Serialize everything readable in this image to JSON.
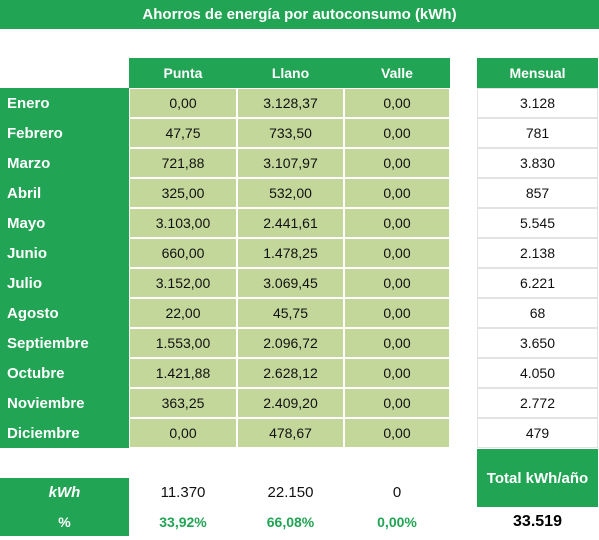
{
  "title": "Ahorros de energía por autoconsumo (kWh)",
  "headers": {
    "punta": "Punta",
    "llano": "Llano",
    "valle": "Valle",
    "mensual": "Mensual"
  },
  "rows": [
    {
      "month": "Enero",
      "punta": "0,00",
      "llano": "3.128,37",
      "valle": "0,00",
      "mensual": "3.128"
    },
    {
      "month": "Febrero",
      "punta": "47,75",
      "llano": "733,50",
      "valle": "0,00",
      "mensual": "781"
    },
    {
      "month": "Marzo",
      "punta": "721,88",
      "llano": "3.107,97",
      "valle": "0,00",
      "mensual": "3.830"
    },
    {
      "month": "Abril",
      "punta": "325,00",
      "llano": "532,00",
      "valle": "0,00",
      "mensual": "857"
    },
    {
      "month": "Mayo",
      "punta": "3.103,00",
      "llano": "2.441,61",
      "valle": "0,00",
      "mensual": "5.545"
    },
    {
      "month": "Junio",
      "punta": "660,00",
      "llano": "1.478,25",
      "valle": "0,00",
      "mensual": "2.138"
    },
    {
      "month": "Julio",
      "punta": "3.152,00",
      "llano": "3.069,45",
      "valle": "0,00",
      "mensual": "6.221"
    },
    {
      "month": "Agosto",
      "punta": "22,00",
      "llano": "45,75",
      "valle": "0,00",
      "mensual": "68"
    },
    {
      "month": "Septiembre",
      "punta": "1.553,00",
      "llano": "2.096,72",
      "valle": "0,00",
      "mensual": "3.650"
    },
    {
      "month": "Octubre",
      "punta": "1.421,88",
      "llano": "2.628,12",
      "valle": "0,00",
      "mensual": "4.050"
    },
    {
      "month": "Noviembre",
      "punta": "363,25",
      "llano": "2.409,20",
      "valle": "0,00",
      "mensual": "2.772"
    },
    {
      "month": "Diciembre",
      "punta": "0,00",
      "llano": "478,67",
      "valle": "0,00",
      "mensual": "479"
    }
  ],
  "totals": {
    "kwh_label": "kWh",
    "kwh_punta": "11.370",
    "kwh_llano": "22.150",
    "kwh_valle": "0",
    "pct_label": "%",
    "pct_punta": "33,92%",
    "pct_llano": "66,08%",
    "pct_valle": "0,00%",
    "total_label": "Total kWh/año",
    "total_value": "33.519"
  }
}
